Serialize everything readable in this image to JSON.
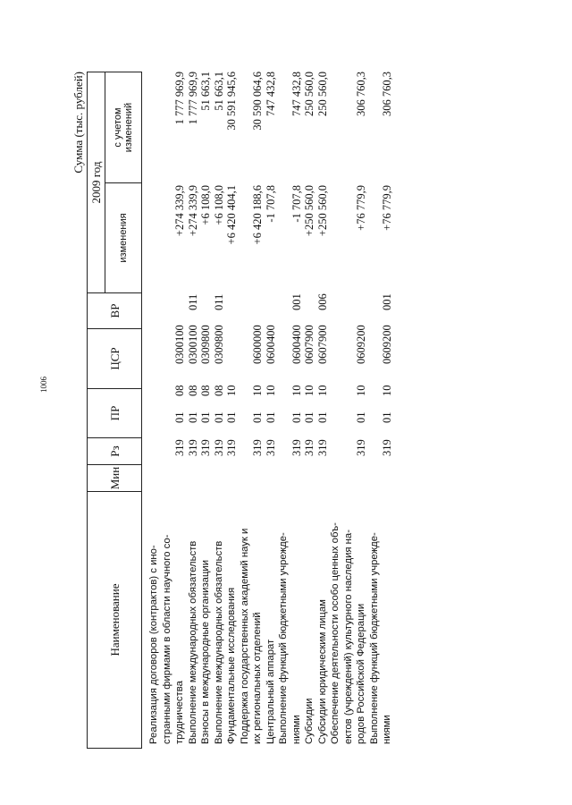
{
  "page_number": "1006",
  "units": "Сумма (тыс. рублей)",
  "header": {
    "name": "Наименование",
    "min": "Мин",
    "rz": "Рз",
    "pr": "ПР",
    "csr": "ЦСР",
    "vr": "ВР",
    "year": "2009 год",
    "changes": "изменения",
    "with_changes": "с учетом\nизменений"
  },
  "rows": [
    {
      "name": "Реализация договоров (контрактов) с ино-\nстранными фирмами в области научного со-\nтрудничества",
      "min": "319",
      "rz": "01",
      "pr": "08",
      "csr": "0300100",
      "vr": "",
      "changes": "+274 339,9",
      "total": "1 777 969,9"
    },
    {
      "name": "Выполнение международных обязательств",
      "min": "319",
      "rz": "01",
      "pr": "08",
      "csr": "0300100",
      "vr": "011",
      "changes": "+274 339,9",
      "total": "1 777 969,9"
    },
    {
      "name": "Взносы в международные организации",
      "min": "319",
      "rz": "01",
      "pr": "08",
      "csr": "0309800",
      "vr": "",
      "changes": "+6 108,0",
      "total": "51 663,1"
    },
    {
      "name": "Выполнение международных обязательств",
      "min": "319",
      "rz": "01",
      "pr": "08",
      "csr": "0309800",
      "vr": "011",
      "changes": "+6 108,0",
      "total": "51 663,1"
    },
    {
      "name": "Фундаментальные исследования",
      "min": "319",
      "rz": "01",
      "pr": "10",
      "csr": "",
      "vr": "",
      "changes": "+6 420 404,1",
      "total": "30 591 945,6"
    },
    {
      "name": "Поддержка государственных академий наук и\nих региональных отделений",
      "min": "319",
      "rz": "01",
      "pr": "10",
      "csr": "0600000",
      "vr": "",
      "changes": "+6 420 188,6",
      "total": "30 590 064,6"
    },
    {
      "name": "Центральный аппарат",
      "min": "319",
      "rz": "01",
      "pr": "10",
      "csr": "0600400",
      "vr": "",
      "changes": "-1 707,8",
      "total": "747 432,8"
    },
    {
      "name": "Выполнение функций бюджетными учрежде-\nниями",
      "min": "319",
      "rz": "01",
      "pr": "10",
      "csr": "0600400",
      "vr": "001",
      "changes": "-1 707,8",
      "total": "747 432,8"
    },
    {
      "name": "Субсидии",
      "min": "319",
      "rz": "01",
      "pr": "10",
      "csr": "0607900",
      "vr": "",
      "changes": "+250 560,0",
      "total": "250 560,0"
    },
    {
      "name": "Субсидии юридическим лицам",
      "min": "319",
      "rz": "01",
      "pr": "10",
      "csr": "0607900",
      "vr": "006",
      "changes": "+250 560,0",
      "total": "250 560,0"
    },
    {
      "name": "Обеспечение деятельности особо ценных объ-\nектов (учреждений) культурного наследия на-\nродов Российской Федерации",
      "min": "319",
      "rz": "01",
      "pr": "10",
      "csr": "0609200",
      "vr": "",
      "changes": "+76 779,9",
      "total": "306 760,3"
    },
    {
      "name": "Выполнение функций бюджетными учрежде-\nниями",
      "min": "319",
      "rz": "01",
      "pr": "10",
      "csr": "0609200",
      "vr": "001",
      "changes": "+76 779,9",
      "total": "306 760,3"
    }
  ]
}
